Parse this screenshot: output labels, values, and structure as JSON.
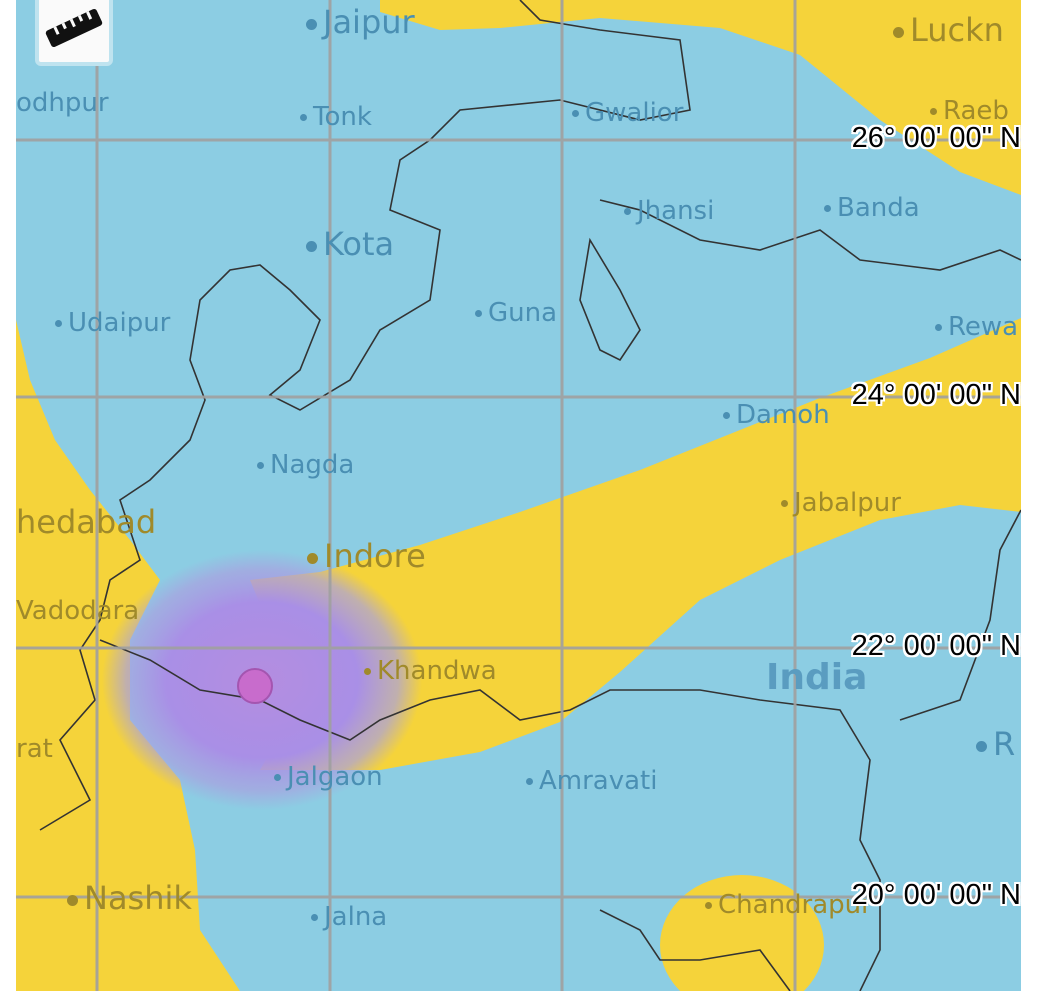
{
  "map": {
    "colors": {
      "water_zone": "#8ccde3",
      "land_zone": "#f5d33a",
      "grid": "#a0a0a0",
      "highlight": "#c86ccc"
    },
    "cities": [
      {
        "name": "Jaipur"
      },
      {
        "name": "Luckn"
      },
      {
        "name": "odhpur"
      },
      {
        "name": "Tonk"
      },
      {
        "name": "Gwalior"
      },
      {
        "name": "Raeb"
      },
      {
        "name": "Jhansi"
      },
      {
        "name": "Banda"
      },
      {
        "name": "Kota"
      },
      {
        "name": "Udaipur"
      },
      {
        "name": "Guna"
      },
      {
        "name": "Rewa"
      },
      {
        "name": "Damoh"
      },
      {
        "name": "Nagda"
      },
      {
        "name": "Jabalpur"
      },
      {
        "name": "hedabad"
      },
      {
        "name": "Indore"
      },
      {
        "name": "Vadodara"
      },
      {
        "name": "Khandwa"
      },
      {
        "name": "India"
      },
      {
        "name": "rat"
      },
      {
        "name": "R"
      },
      {
        "name": "Jalgaon"
      },
      {
        "name": "Amravati"
      },
      {
        "name": "Nashik"
      },
      {
        "name": "Jalna"
      },
      {
        "name": "Chandrapur"
      }
    ],
    "latitude_labels": [
      "26° 00' 00\" N",
      "24° 00' 00\" N",
      "22° 00' 00\" N",
      "20° 00' 00\" N"
    ],
    "tools": {
      "measure_icon": "ruler-icon"
    }
  }
}
